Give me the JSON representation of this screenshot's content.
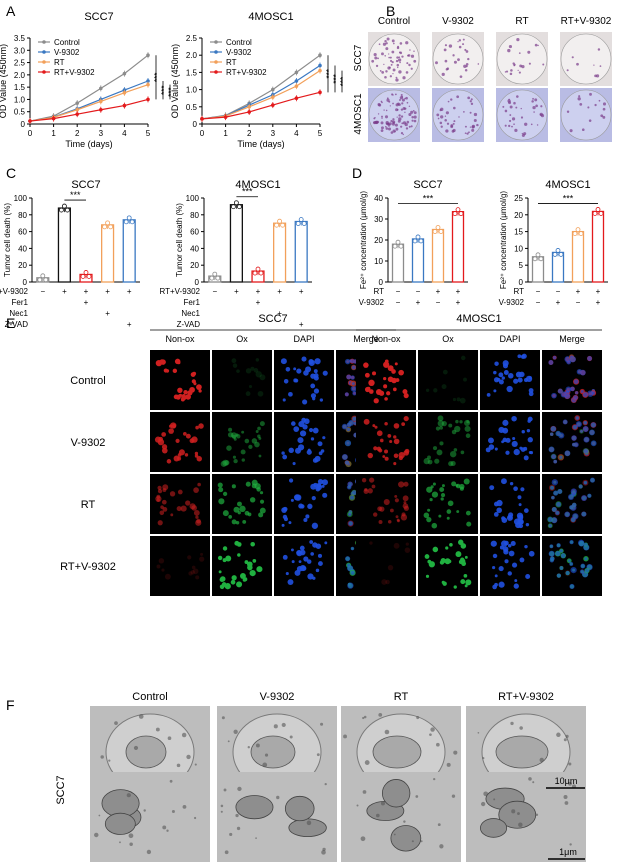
{
  "panels": {
    "A": "A",
    "B": "B",
    "C": "C",
    "D": "D",
    "E": "E",
    "F": "F"
  },
  "colors": {
    "control": "#8c8c8c",
    "v9302": "#3a78c2",
    "rt": "#f2a05a",
    "combo": "#e31a1c",
    "red_ch": "#d02020",
    "green_ch": "#20b040",
    "blue_ch": "#2050e0"
  },
  "chart_data": [
    {
      "panel": "A",
      "type": "line",
      "title": "SCC7",
      "xlabel": "Time (days)",
      "ylabel": "OD Value (450nm)",
      "x": [
        0,
        1,
        2,
        3,
        4,
        5
      ],
      "ylim": [
        0,
        3.5
      ],
      "yticks": [
        "0",
        "0.5",
        "1.0",
        "1.5",
        "2.0",
        "2.5",
        "3.0",
        "3.5"
      ],
      "xticks": [
        "0",
        "1",
        "2",
        "3",
        "4",
        "5"
      ],
      "legend_position": "top-left",
      "series": [
        {
          "name": "Control",
          "color": "#8c8c8c",
          "values": [
            0.12,
            0.32,
            0.85,
            1.45,
            2.05,
            2.8
          ]
        },
        {
          "name": "V-9302",
          "color": "#3a78c2",
          "values": [
            0.12,
            0.28,
            0.62,
            1.0,
            1.38,
            1.75
          ]
        },
        {
          "name": "RT",
          "color": "#f2a05a",
          "values": [
            0.12,
            0.27,
            0.58,
            0.92,
            1.27,
            1.6
          ]
        },
        {
          "name": "RT+V-9302",
          "color": "#e31a1c",
          "values": [
            0.12,
            0.22,
            0.4,
            0.58,
            0.75,
            1.0
          ]
        }
      ],
      "significance": [
        "***",
        "***",
        "***"
      ]
    },
    {
      "panel": "A",
      "type": "line",
      "title": "4MOSC1",
      "xlabel": "Time (days)",
      "ylabel": "OD Value (450nm)",
      "x": [
        0,
        1,
        2,
        3,
        4,
        5
      ],
      "ylim": [
        0,
        2.5
      ],
      "yticks": [
        "0",
        "0.5",
        "1.0",
        "1.5",
        "2.0",
        "2.5"
      ],
      "xticks": [
        "0",
        "1",
        "2",
        "3",
        "4",
        "5"
      ],
      "legend_position": "top-left",
      "series": [
        {
          "name": "Control",
          "color": "#8c8c8c",
          "values": [
            0.15,
            0.25,
            0.6,
            1.0,
            1.5,
            2.0
          ]
        },
        {
          "name": "V-9302",
          "color": "#3a78c2",
          "values": [
            0.15,
            0.24,
            0.55,
            0.85,
            1.25,
            1.7
          ]
        },
        {
          "name": "RT",
          "color": "#f2a05a",
          "values": [
            0.15,
            0.23,
            0.5,
            0.78,
            1.1,
            1.55
          ]
        },
        {
          "name": "RT+V-9302",
          "color": "#e31a1c",
          "values": [
            0.15,
            0.2,
            0.35,
            0.55,
            0.75,
            0.92
          ]
        }
      ],
      "significance": [
        "***",
        "***",
        "***"
      ]
    },
    {
      "panel": "C",
      "type": "bar",
      "title": "SCC7",
      "ylabel": "Tumor cell death (%)",
      "ylim": [
        0,
        100
      ],
      "yticks": [
        "0",
        "20",
        "40",
        "60",
        "80",
        "100"
      ],
      "values": [
        5,
        88,
        9,
        68,
        74
      ],
      "colors": [
        "#8c8c8c",
        "#111111",
        "#e31a1c",
        "#f2a05a",
        "#3a78c2"
      ],
      "rows": [
        {
          "label": "RT+V-9302",
          "marks": [
            "−",
            "+",
            "+",
            "+",
            "+"
          ]
        },
        {
          "label": "Fer1",
          "marks": [
            "",
            "",
            "+",
            "",
            ""
          ]
        },
        {
          "label": "Nec1",
          "marks": [
            "",
            "",
            "",
            "+",
            ""
          ]
        },
        {
          "label": "Z-VAD",
          "marks": [
            "",
            "",
            "",
            "",
            "+"
          ]
        }
      ],
      "significance": "***"
    },
    {
      "panel": "C",
      "type": "bar",
      "title": "4MOSC1",
      "ylabel": "Tumor cell death (%)",
      "ylim": [
        0,
        100
      ],
      "yticks": [
        "0",
        "20",
        "40",
        "60",
        "80",
        "100"
      ],
      "values": [
        7,
        92,
        13,
        70,
        72
      ],
      "colors": [
        "#8c8c8c",
        "#111111",
        "#e31a1c",
        "#f2a05a",
        "#3a78c2"
      ],
      "rows": [
        {
          "label": "RT+V-9302",
          "marks": [
            "−",
            "+",
            "+",
            "+",
            "+"
          ]
        },
        {
          "label": "Fer1",
          "marks": [
            "",
            "",
            "+",
            "",
            ""
          ]
        },
        {
          "label": "Nec1",
          "marks": [
            "",
            "",
            "",
            "+",
            ""
          ]
        },
        {
          "label": "Z-VAD",
          "marks": [
            "",
            "",
            "",
            "",
            "+"
          ]
        }
      ],
      "significance": "***"
    },
    {
      "panel": "D",
      "type": "bar",
      "title": "SCC7",
      "ylabel": "Fe²⁺ concentration (μmol/g)",
      "ylim": [
        0,
        40
      ],
      "yticks": [
        "0",
        "10",
        "20",
        "30",
        "40"
      ],
      "values": [
        18,
        20.5,
        25,
        33.5
      ],
      "colors": [
        "#8c8c8c",
        "#3a78c2",
        "#f2a05a",
        "#e31a1c"
      ],
      "rows": [
        {
          "label": "RT",
          "marks": [
            "−",
            "−",
            "+",
            "+"
          ]
        },
        {
          "label": "V-9302",
          "marks": [
            "−",
            "+",
            "−",
            "+"
          ]
        }
      ],
      "significance": "***"
    },
    {
      "panel": "D",
      "type": "bar",
      "title": "4MOSC1",
      "ylabel": "Fe²⁺ concentration (μmol/g)",
      "ylim": [
        0,
        25
      ],
      "yticks": [
        "0",
        "5",
        "10",
        "15",
        "20",
        "25"
      ],
      "values": [
        7.5,
        8.8,
        15,
        21
      ],
      "colors": [
        "#8c8c8c",
        "#3a78c2",
        "#f2a05a",
        "#e31a1c"
      ],
      "rows": [
        {
          "label": "RT",
          "marks": [
            "−",
            "−",
            "+",
            "+"
          ]
        },
        {
          "label": "V-9302",
          "marks": [
            "−",
            "+",
            "−",
            "+"
          ]
        }
      ],
      "significance": "***"
    }
  ],
  "panelB": {
    "columns": [
      "Control",
      "V-9302",
      "RT",
      "RT+V-9302"
    ],
    "rows": [
      "SCC7",
      "4MOSC1"
    ]
  },
  "panelE": {
    "groups": [
      "SCC7",
      "4MOSC1"
    ],
    "channels": [
      "Non-ox",
      "Ox",
      "DAPI",
      "Merge"
    ],
    "rows": [
      "Control",
      "V-9302",
      "RT",
      "RT+V-9302"
    ]
  },
  "panelF": {
    "columns": [
      "Control",
      "V-9302",
      "RT",
      "RT+V-9302"
    ],
    "row_label": "SCC7",
    "scalebars": [
      "10μm",
      "1μm"
    ]
  }
}
